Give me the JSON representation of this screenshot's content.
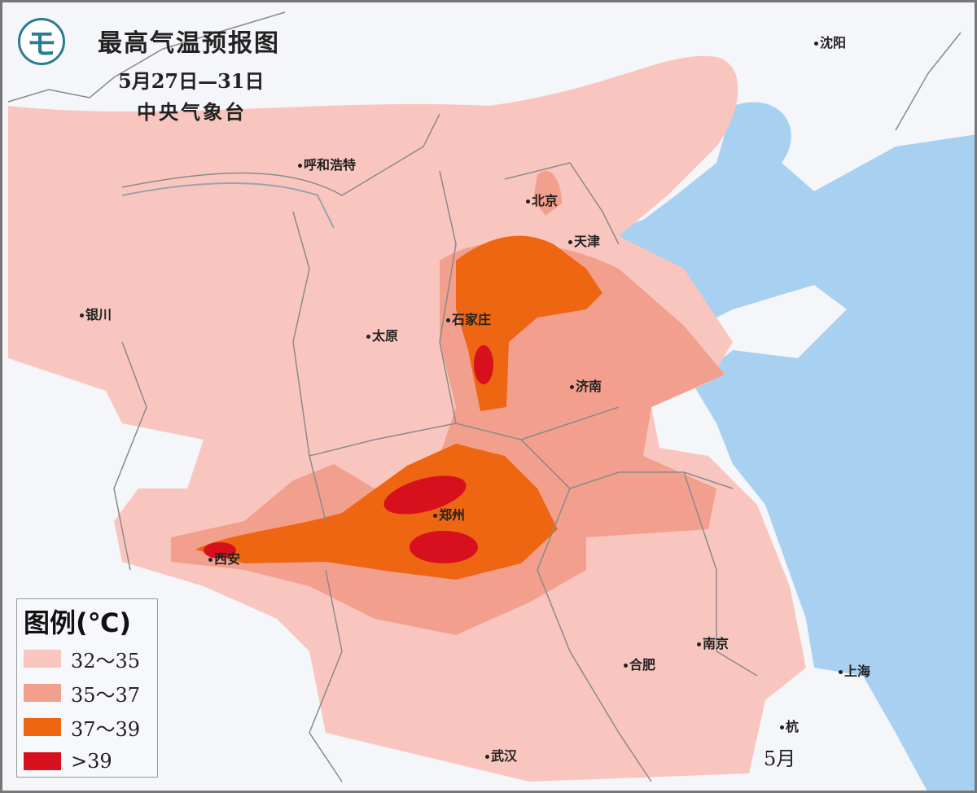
{
  "header": {
    "title": "最高气温预报图",
    "date_range": "5月27日—31日",
    "organization": "中央气象台",
    "logo_icon": "cma-logo-icon"
  },
  "cities": [
    {
      "name": "沈阳"
    },
    {
      "name": "呼和浩特"
    },
    {
      "name": "北京"
    },
    {
      "name": "天津"
    },
    {
      "name": "银川"
    },
    {
      "name": "太原"
    },
    {
      "name": "石家庄"
    },
    {
      "name": "济南"
    },
    {
      "name": "郑州"
    },
    {
      "name": "西安"
    },
    {
      "name": "合肥"
    },
    {
      "name": "南京"
    },
    {
      "name": "上海"
    },
    {
      "name": "武汉"
    },
    {
      "name": "杭"
    }
  ],
  "legend": {
    "title": "图例(℃)",
    "items": [
      {
        "label": "32～35",
        "color": "#f9c6bf"
      },
      {
        "label": "35～37",
        "color": "#f39f8d"
      },
      {
        "label": "37～39",
        "color": "#ee6512"
      },
      {
        "label": ">39",
        "color": "#d6101c"
      }
    ]
  },
  "colors": {
    "sea": "#a8d0f0",
    "land": "#f4f6fa",
    "border": "#8a8a8a"
  },
  "watermark": {
    "text": "5月"
  }
}
